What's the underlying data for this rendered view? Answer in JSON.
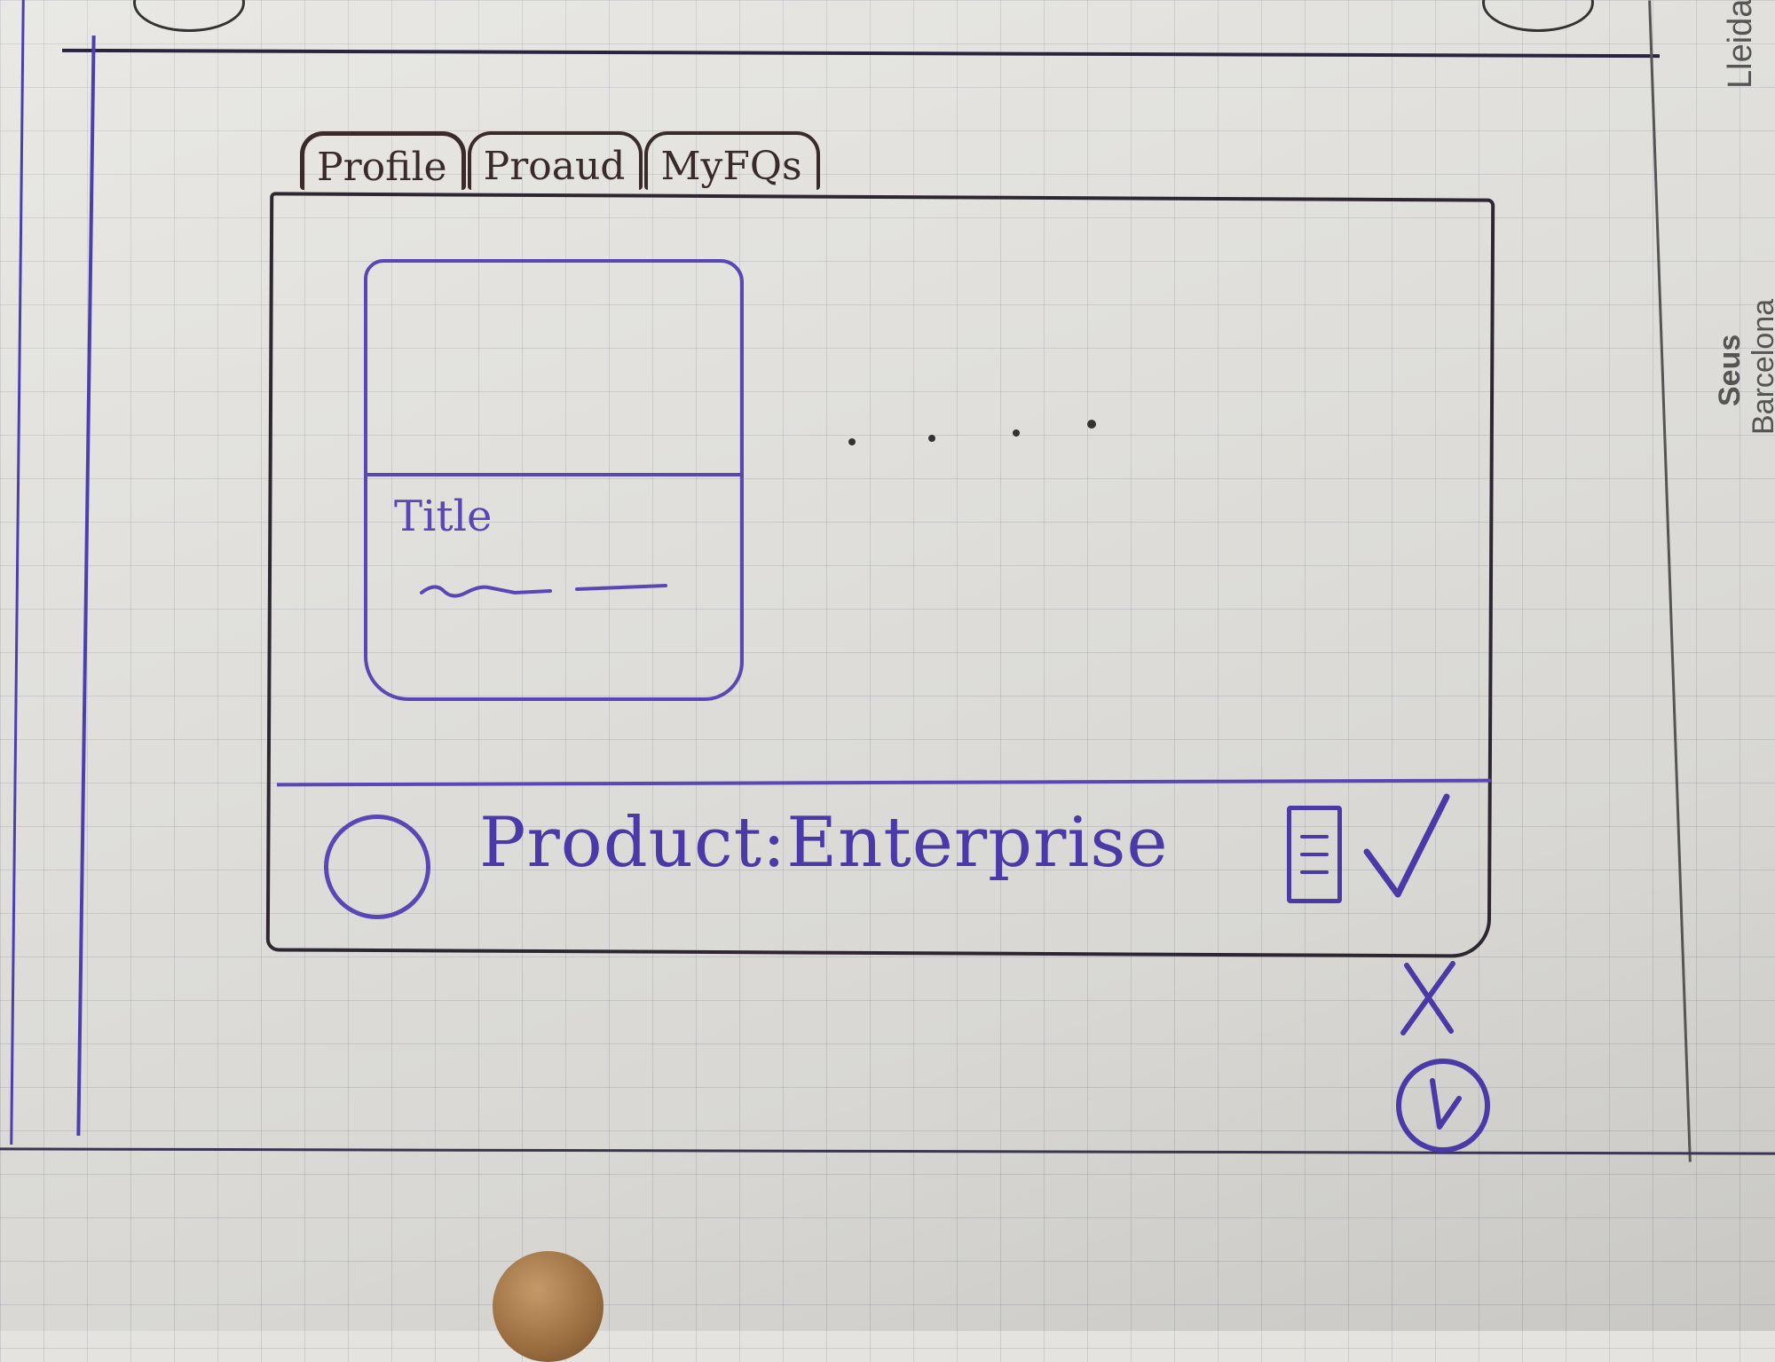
{
  "tabs": [
    {
      "label": "Profile",
      "active": true
    },
    {
      "label": "Proaud",
      "active": false
    },
    {
      "label": "MyFQs",
      "active": false
    }
  ],
  "card": {
    "title": "Title"
  },
  "footer": {
    "product_label": "Product:Enterprise"
  },
  "actions": [
    {
      "icon": "checkmark-icon"
    },
    {
      "icon": "close-icon"
    },
    {
      "icon": "clock-icon"
    }
  ],
  "margin_text": {
    "city_1": "Lleida",
    "header": "Seus",
    "city_2": "Barcelona"
  },
  "colors": {
    "pen_blue": "#5a47b5",
    "pen_dark": "#3a2b2b"
  }
}
